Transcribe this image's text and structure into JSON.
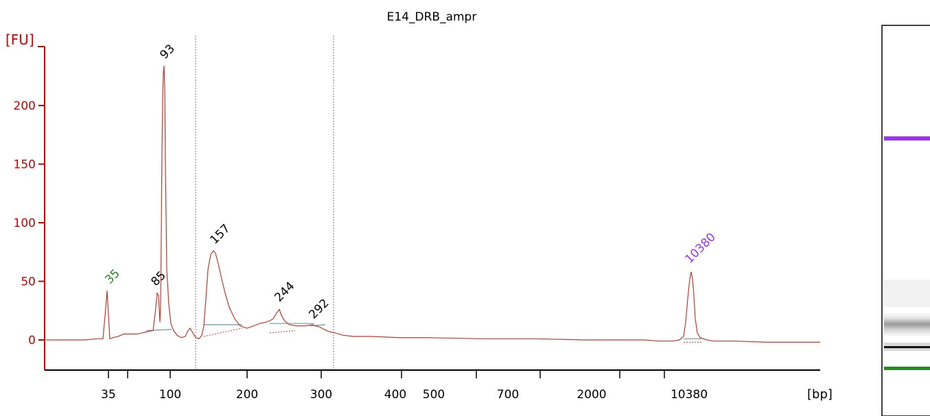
{
  "chart_data": {
    "type": "line",
    "title": "E14_DRB_ampr",
    "ylabel": "[FU]",
    "xlabel": "[bp]",
    "ylim": [
      -25,
      250
    ],
    "yticks": [
      0,
      50,
      100,
      150,
      200
    ],
    "grid": false,
    "x_tick_labels": [
      "35",
      "100",
      "200",
      "300",
      "400",
      "500",
      "700",
      "2000",
      "10380"
    ],
    "region_markers": [
      "start",
      "end"
    ],
    "peak_labels": [
      {
        "label": "35",
        "value": 42,
        "color": "#228b22"
      },
      {
        "label": "85",
        "value": 40,
        "color": "#000000"
      },
      {
        "label": "93",
        "value": 234,
        "color": "#000000"
      },
      {
        "label": "157",
        "value": 76,
        "color": "#000000"
      },
      {
        "label": "244",
        "value": 26,
        "color": "#000000"
      },
      {
        "label": "292",
        "value": 13,
        "color": "#000000"
      },
      {
        "label": "10380",
        "value": 58,
        "color": "#9b30ff"
      }
    ],
    "colors": {
      "trace": "#c0392b",
      "axis": "#cc0000",
      "baseline": "#5f9ea0",
      "lower_marker": "#228b22",
      "upper_marker": "#9b30ff"
    }
  },
  "gel": {
    "bands": [
      {
        "name": "upper-marker",
        "color": "#9b30ff"
      },
      {
        "name": "library-smear",
        "color": "#888888"
      },
      {
        "name": "peak-band",
        "color": "#111111"
      },
      {
        "name": "lower-marker",
        "color": "#228b22"
      }
    ]
  }
}
